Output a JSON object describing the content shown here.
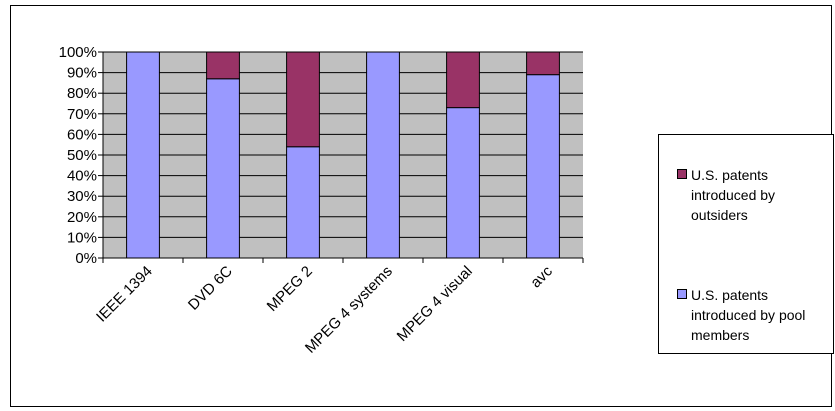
{
  "chart_data": {
    "type": "bar",
    "stacked": true,
    "percent_stacked": true,
    "categories": [
      "IEEE 1394",
      "DVD 6C",
      "MPEG 2",
      "MPEG 4 systems",
      "MPEG 4 visual",
      "avc"
    ],
    "series": [
      {
        "name": "U.S. patents introduced by pool members",
        "color": "#9999ff",
        "values": [
          100,
          87,
          54,
          100,
          73,
          89
        ]
      },
      {
        "name": "U.S. patents introduced by outsiders",
        "color": "#993366",
        "values": [
          0,
          13,
          46,
          0,
          27,
          11
        ]
      }
    ],
    "y_ticks": [
      "0%",
      "10%",
      "20%",
      "30%",
      "40%",
      "50%",
      "60%",
      "70%",
      "80%",
      "90%",
      "100%"
    ],
    "ylim": [
      0,
      100
    ],
    "grid": true,
    "plot_background": "#c0c0c0",
    "legend": {
      "position": "right",
      "entries": [
        {
          "label": "U.S. patents introduced by outsiders",
          "color": "#993366"
        },
        {
          "label": "U.S. patents introduced by pool members",
          "color": "#9999ff"
        }
      ]
    }
  }
}
